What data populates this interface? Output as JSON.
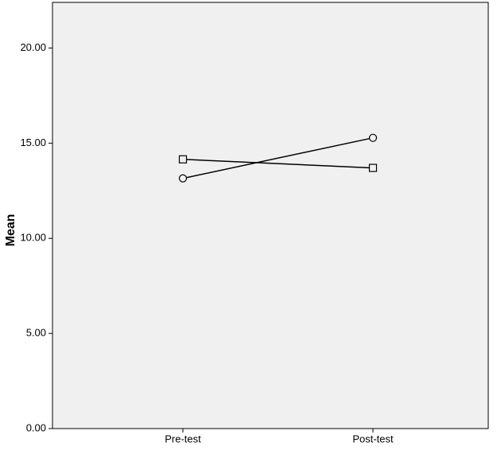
{
  "chart_data": {
    "type": "line",
    "y_label": "Mean",
    "categories": [
      "Pre-test",
      "Post-test"
    ],
    "series": [
      {
        "marker": "circle",
        "color": "#000000",
        "values": [
          13.15,
          15.28
        ]
      },
      {
        "marker": "square",
        "color": "#000000",
        "values": [
          14.15,
          13.7
        ]
      }
    ],
    "ylim": [
      0,
      22.4
    ],
    "yticks": [
      {
        "value": 0,
        "label": "0.00"
      },
      {
        "value": 5,
        "label": "5.00"
      },
      {
        "value": 10,
        "label": "10.00"
      },
      {
        "value": 15,
        "label": "15.00"
      },
      {
        "value": 20,
        "label": "20.00"
      }
    ],
    "background": "#f0f0f0"
  }
}
